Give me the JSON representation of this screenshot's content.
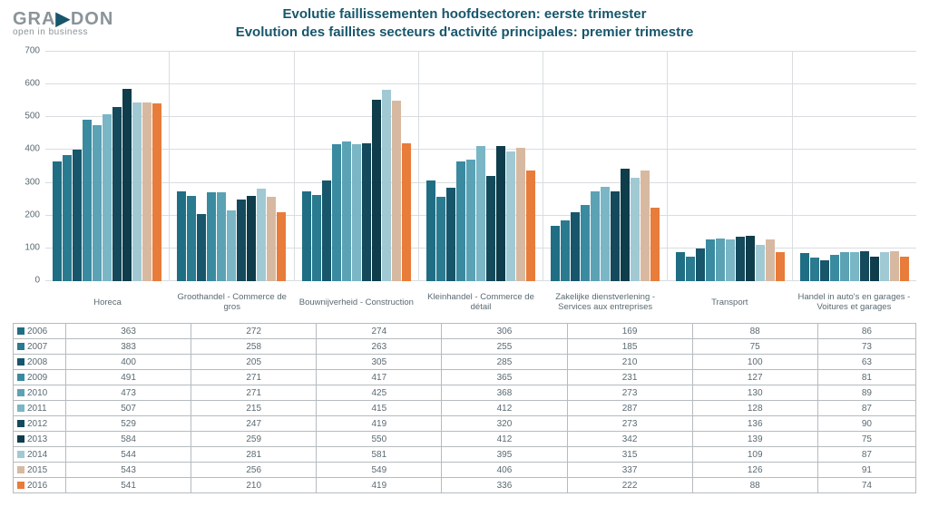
{
  "logo": {
    "text_a": "GRA",
    "text_b": "DON",
    "tagline": "open in business"
  },
  "title_nl": "Evolutie faillissementen hoofdsectoren: eerste trimester",
  "title_fr": "Evolution des faillites secteurs d'activité principales: premier trimestre",
  "chart": {
    "ylim": [
      0,
      700
    ],
    "ytick_step": 100,
    "background": "#ffffff",
    "grid_color": "#d9dde0",
    "label_fontsize": 10,
    "categories": [
      "Horeca",
      "Groothandel - Commerce de gros",
      "Bouwnijverheid - Construction",
      "Kleinhandel - Commerce de détail",
      "Zakelijke dienstverlening - Services aux entreprises",
      "Transport",
      "Handel in auto's en garages - Voitures et garages"
    ],
    "series": [
      {
        "year": "2006",
        "color": "#1f6e84",
        "values": [
          363,
          272,
          274,
          306,
          169,
          88,
          86
        ]
      },
      {
        "year": "2007",
        "color": "#2a7a90",
        "values": [
          383,
          258,
          263,
          255,
          185,
          75,
          73
        ]
      },
      {
        "year": "2008",
        "color": "#17566b",
        "values": [
          400,
          205,
          305,
          285,
          210,
          100,
          63
        ]
      },
      {
        "year": "2009",
        "color": "#3a8aa0",
        "values": [
          491,
          271,
          417,
          365,
          231,
          127,
          81
        ]
      },
      {
        "year": "2010",
        "color": "#5ba2b5",
        "values": [
          473,
          271,
          425,
          368,
          273,
          130,
          89
        ]
      },
      {
        "year": "2011",
        "color": "#7ab6c5",
        "values": [
          507,
          215,
          415,
          412,
          287,
          128,
          87
        ]
      },
      {
        "year": "2012",
        "color": "#144a5c",
        "values": [
          529,
          247,
          419,
          320,
          273,
          136,
          90
        ]
      },
      {
        "year": "2013",
        "color": "#0f3d4c",
        "values": [
          584,
          259,
          550,
          412,
          342,
          139,
          75
        ]
      },
      {
        "year": "2014",
        "color": "#a0c9d4",
        "values": [
          544,
          281,
          581,
          395,
          315,
          109,
          87
        ]
      },
      {
        "year": "2015",
        "color": "#d7b9a1",
        "values": [
          543,
          256,
          549,
          406,
          337,
          126,
          91
        ]
      },
      {
        "year": "2016",
        "color": "#e87c3a",
        "values": [
          541,
          210,
          419,
          336,
          222,
          88,
          74
        ]
      }
    ]
  }
}
